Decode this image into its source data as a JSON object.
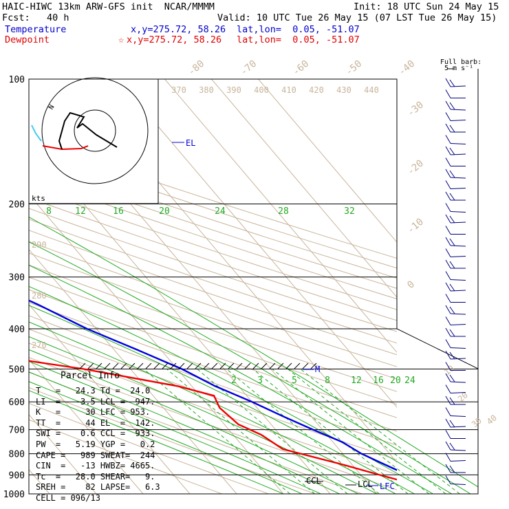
{
  "header": {
    "line1_left": "HAIC-HIWC 13km ARW-GFS init  NCAR/MMMM",
    "line1_right": "Init: 18 UTC Sun 24 May 15",
    "line2_left": "Fcst:   40 h",
    "line2_right": "Valid: 10 UTC Tue 26 May 15 (07 LST Tue 26 May 15)",
    "temp_label": "Temperature",
    "temp_xy": "x,y=275.72, 58.26",
    "temp_latlon": "lat,lon=  0.05, -51.07",
    "dew_label": "Dewpoint",
    "dew_xy": "x,y=275.72, 58.26",
    "dew_latlon": "lat,lon=  0.05, -51.07",
    "dew_star": "☆"
  },
  "barb_key": {
    "line1": "Full barb:",
    "line2": "5 m s⁻¹"
  },
  "hodograph": {
    "label_kts": "kts",
    "label_n": "N"
  },
  "colors": {
    "temperature": "#0000dd",
    "dewpoint": "#ee0000",
    "mixing": "#22aa22",
    "isotherm": "#c8b49a",
    "isobar": "#000000",
    "hodo_cyan": "#44ccee"
  },
  "chart_data": {
    "type": "line",
    "title": "",
    "pressure_levels": [
      100,
      200,
      300,
      400,
      500,
      600,
      700,
      800,
      900,
      1000
    ],
    "pressure_range": [
      100,
      1000
    ],
    "isotherm_labels": [
      "-80",
      "-70",
      "-60",
      "-50",
      "-40",
      "-30",
      "-20",
      "-10",
      "0",
      "10",
      "20",
      "30",
      "40"
    ],
    "theta_labels": [
      "370",
      "380",
      "390",
      "400",
      "410",
      "420",
      "430",
      "440"
    ],
    "theta_left_labels": [
      "290",
      "280",
      "270"
    ],
    "mixing_ratio_labels_upper": [
      "8",
      "12",
      "16",
      "20",
      "24",
      "28",
      "32"
    ],
    "mixing_ratio_labels_lower": [
      "2",
      "3",
      "5",
      "8",
      "12",
      "16",
      "20",
      "24"
    ],
    "series": [
      {
        "name": "Temperature",
        "points": [
          [
            100,
            -75
          ],
          [
            120,
            -77
          ],
          [
            150,
            -70
          ],
          [
            200,
            -58
          ],
          [
            250,
            -46
          ],
          [
            300,
            -36
          ],
          [
            350,
            -28
          ],
          [
            400,
            -22
          ],
          [
            450,
            -15
          ],
          [
            500,
            -9
          ],
          [
            550,
            -5
          ],
          [
            600,
            0
          ],
          [
            650,
            4
          ],
          [
            700,
            8
          ],
          [
            750,
            12
          ],
          [
            800,
            14
          ],
          [
            850,
            17
          ],
          [
            900,
            20
          ],
          [
            950,
            22
          ],
          [
            1000,
            24
          ]
        ]
      },
      {
        "name": "Dewpoint",
        "points": [
          [
            100,
            -87
          ],
          [
            130,
            -93
          ],
          [
            160,
            -96
          ],
          [
            200,
            -90
          ],
          [
            230,
            -94
          ],
          [
            260,
            -93
          ],
          [
            290,
            -75
          ],
          [
            310,
            -73
          ],
          [
            350,
            -57
          ],
          [
            380,
            -42
          ],
          [
            420,
            -43
          ],
          [
            470,
            -44
          ],
          [
            500,
            -30
          ],
          [
            550,
            -13
          ],
          [
            580,
            -7
          ],
          [
            620,
            -8
          ],
          [
            680,
            -7
          ],
          [
            720,
            -4
          ],
          [
            780,
            -2
          ],
          [
            850,
            8
          ],
          [
            900,
            14
          ],
          [
            950,
            20
          ],
          [
            1000,
            24
          ]
        ]
      }
    ],
    "levels_annotations": [
      "EL",
      "CCL",
      "LCL",
      "LFC",
      "M"
    ]
  },
  "parcel": {
    "title": "Parcel Info",
    "rows": [
      "T   =   24.3 Td =  24.0",
      "LI  =   -3.5 LCL =  947.",
      "K   =     30 LFC = 953.",
      "TT  =     44 EL  =  142.",
      "SWI =    0.6 CCL =  933.",
      "PW  =   5.19 YGP =   0.2",
      "CAPE =   989 SWEAT=  244",
      "CIN  =   -13 HWBZ= 4665.",
      "Tc  =   28.0 SHEAR=   9.",
      "SREH =    82 LAPSE=   6.3",
      "CELL = 096/13"
    ]
  }
}
